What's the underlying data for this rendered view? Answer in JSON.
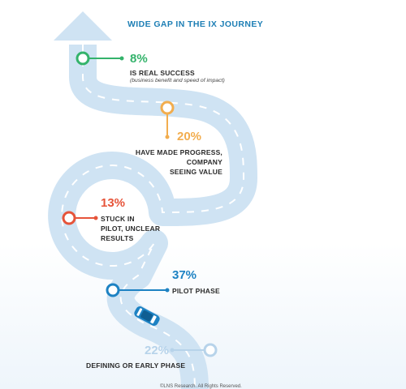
{
  "title": "WIDE GAP IN THE IX JOURNEY",
  "stages": [
    {
      "percent": "8%",
      "label": [
        "IS REAL SUCCESS"
      ],
      "note": "(business benefit and speed of impact)",
      "color": "#34b36b"
    },
    {
      "percent": "20%",
      "label": [
        "HAVE MADE PROGRESS,",
        "COMPANY",
        "SEEING VALUE"
      ],
      "color": "#f2ad4e"
    },
    {
      "percent": "13%",
      "label": [
        "STUCK IN",
        "PILOT, UNCLEAR",
        "RESULTS"
      ],
      "color": "#e6543a"
    },
    {
      "percent": "37%",
      "label": [
        "PILOT PHASE"
      ],
      "color": "#1d82c3"
    },
    {
      "percent": "22%",
      "label": [
        "DEFINING OR EARLY PHASE"
      ],
      "color": "#b7d3ea"
    }
  ],
  "copyright": "©LNS Research. All Rights Reserved.",
  "colors": {
    "road": "#cfe3f3",
    "road_dash": "#ffffff",
    "car": "#1d82c3"
  }
}
